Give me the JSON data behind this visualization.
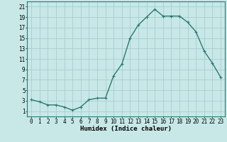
{
  "x_values": [
    0,
    1,
    2,
    3,
    4,
    5,
    6,
    7,
    8,
    9,
    10,
    11,
    12,
    13,
    14,
    15,
    16,
    17,
    18,
    19,
    20,
    21,
    22,
    23
  ],
  "y_values": [
    3.2,
    2.8,
    2.2,
    2.2,
    1.8,
    1.2,
    1.8,
    3.2,
    3.5,
    3.5,
    7.8,
    10.0,
    15.0,
    17.5,
    19.0,
    20.5,
    19.2,
    19.2,
    19.2,
    18.0,
    16.2,
    12.5,
    10.2,
    7.5
  ],
  "line_color": "#2a7a6a",
  "marker_color": "#2a7a6a",
  "bg_color": "#c8e8e8",
  "grid_color": "#aacccc",
  "xlabel": "Humidex (Indice chaleur)",
  "xlim": [
    -0.5,
    23.5
  ],
  "ylim": [
    0,
    22
  ],
  "yticks": [
    1,
    3,
    5,
    7,
    9,
    11,
    13,
    15,
    17,
    19,
    21
  ],
  "xticks": [
    0,
    1,
    2,
    3,
    4,
    5,
    6,
    7,
    8,
    9,
    10,
    11,
    12,
    13,
    14,
    15,
    16,
    17,
    18,
    19,
    20,
    21,
    22,
    23
  ],
  "xlabel_fontsize": 6.5,
  "tick_fontsize": 5.5,
  "line_width": 1.0,
  "marker_size": 2.5
}
